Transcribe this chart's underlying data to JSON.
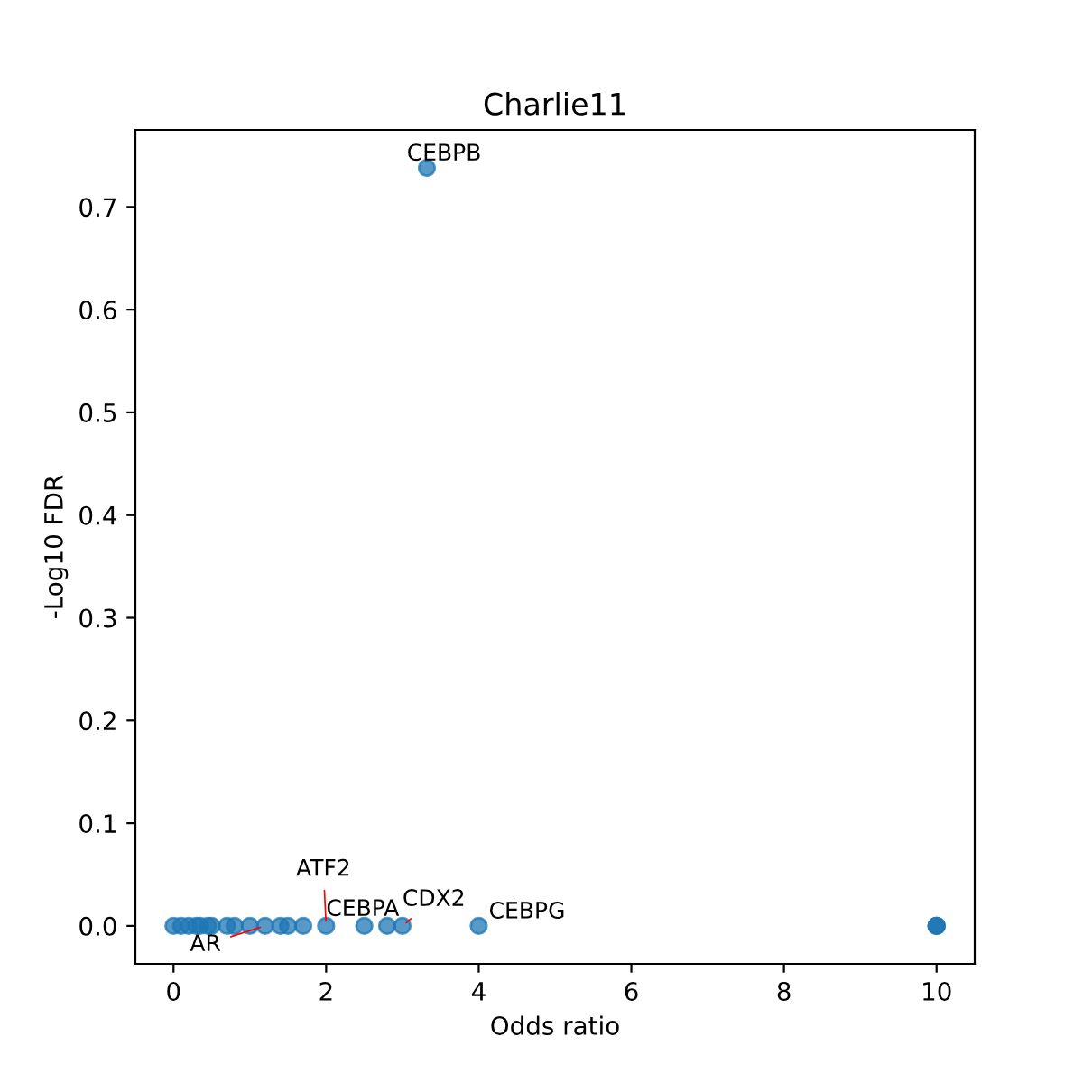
{
  "chart_data": {
    "type": "scatter",
    "title": "Charlie11",
    "xlabel": "Odds ratio",
    "ylabel": "-Log10 FDR",
    "series": [
      {
        "color": "#1f77b4",
        "x": [
          0,
          0.1,
          0.2,
          0.3,
          0.35,
          0.45,
          0.5,
          0.7,
          0.8,
          1.0,
          1.2,
          1.4,
          1.5,
          1.7,
          2,
          2.5,
          2.8,
          3,
          3.32,
          4,
          10,
          10,
          10
        ],
        "values": [
          0,
          0,
          0,
          0,
          0,
          0,
          0,
          0,
          0,
          0,
          0,
          0,
          0,
          0,
          0,
          0,
          0,
          0,
          0.738,
          0,
          0,
          0,
          0
        ]
      }
    ],
    "xlim": [
      -0.5,
      10.5
    ],
    "xticks": [
      0,
      2,
      4,
      6,
      8,
      10
    ],
    "ylim": [
      -0.037,
      0.775
    ],
    "yticks": [
      {
        "value": 0,
        "label": "0.0"
      },
      {
        "value": 0.1,
        "label": "0.1"
      },
      {
        "value": 0.2,
        "label": "0.2"
      },
      {
        "value": 0.3,
        "label": "0.3"
      },
      {
        "value": 0.4,
        "label": "0.4"
      },
      {
        "value": 0.5,
        "label": "0.5"
      },
      {
        "value": 0.6,
        "label": "0.6"
      },
      {
        "value": 0.7,
        "label": "0.7"
      }
    ],
    "marker": "circle",
    "grid": false,
    "legend": false,
    "annotations": [
      {
        "text": "CEBPB",
        "x": 3.32,
        "y": 0.738
      },
      {
        "text": "ATF2",
        "x": 2,
        "y": 0
      },
      {
        "text": "CEBPA",
        "x": 2,
        "y": 0
      },
      {
        "text": "AR",
        "x": 1.2,
        "y": 0
      },
      {
        "text": "CDX2",
        "x": 3,
        "y": 0
      },
      {
        "text": "CEBPG",
        "x": 4,
        "y": 0
      }
    ]
  }
}
